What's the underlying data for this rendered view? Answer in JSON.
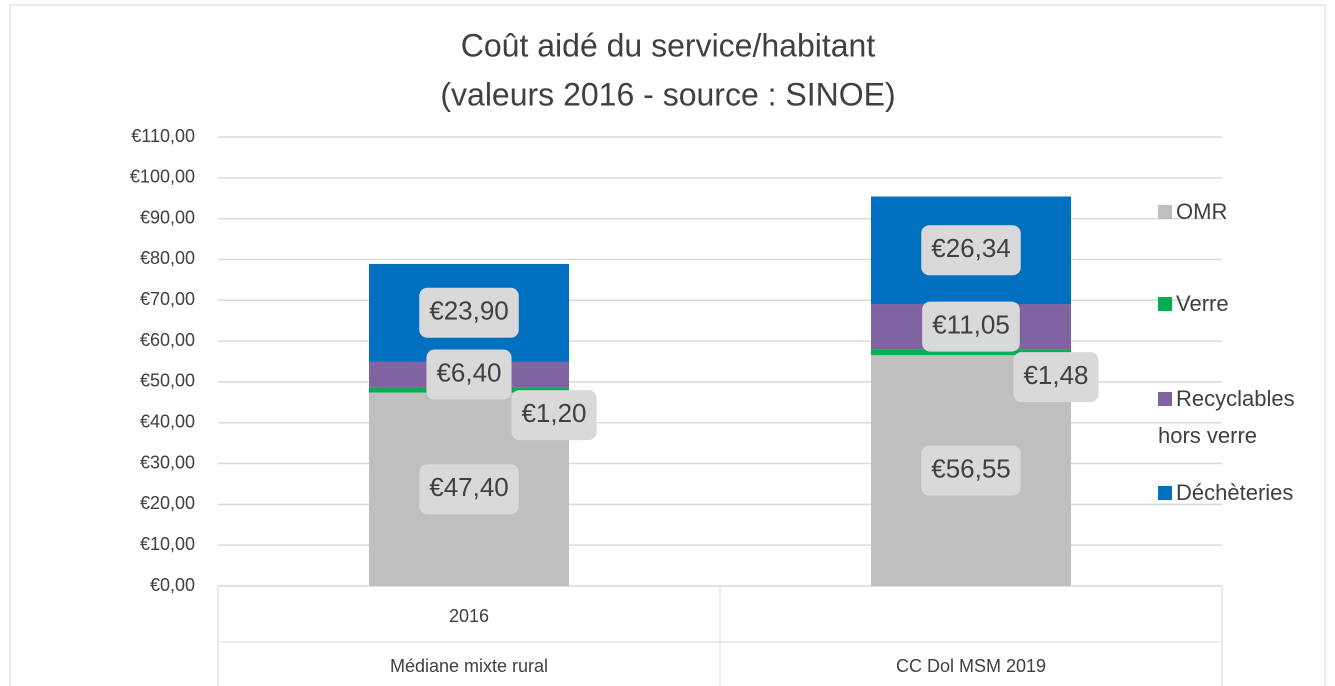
{
  "chart_data": {
    "type": "stacked_bar",
    "title": [
      "Coût aidé du service/habitant",
      "(valeurs 2016 - source : SINOE)"
    ],
    "categories": [
      "2016",
      null
    ],
    "groups": [
      "Médiane mixte rural",
      "CC Dol MSM 2019"
    ],
    "series": [
      {
        "name": "OMR",
        "color": "#bfbfbf",
        "values": [
          47.4,
          56.55
        ],
        "value_labels": [
          "€47,40",
          "€56,55"
        ]
      },
      {
        "name": "Verre",
        "color": "#00b050",
        "values": [
          1.2,
          1.48
        ],
        "value_labels": [
          "€1,20",
          "€1,48"
        ]
      },
      {
        "name": "Recyclables hors verre",
        "color": "#8064a2",
        "values": [
          6.4,
          11.05
        ],
        "value_labels": [
          "€6,40",
          "€11,05"
        ]
      },
      {
        "name": "Déchèteries",
        "color": "#0070c0",
        "values": [
          23.9,
          26.34
        ],
        "value_labels": [
          "€23,90",
          "€26,34"
        ]
      }
    ],
    "ylim": [
      0,
      110
    ],
    "yticks": [
      {
        "value": 0,
        "label": "€0,00"
      },
      {
        "value": 10,
        "label": "€10,00"
      },
      {
        "value": 20,
        "label": "€20,00"
      },
      {
        "value": 30,
        "label": "€30,00"
      },
      {
        "value": 40,
        "label": "€40,00"
      },
      {
        "value": 50,
        "label": "€50,00"
      },
      {
        "value": 60,
        "label": "€60,00"
      },
      {
        "value": 70,
        "label": "€70,00"
      },
      {
        "value": 80,
        "label": "€80,00"
      },
      {
        "value": 90,
        "label": "€90,00"
      },
      {
        "value": 100,
        "label": "€100,00"
      },
      {
        "value": 110,
        "label": "€110,00"
      }
    ],
    "grid": true,
    "legend": "right"
  }
}
